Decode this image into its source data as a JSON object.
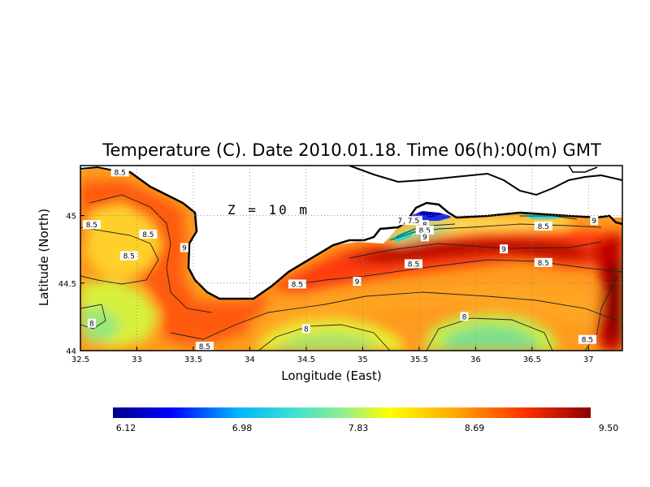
{
  "chart_data": {
    "type": "heatmap",
    "title": "Temperature (C). Date 2010.01.18. Time 06(h):00(m) GMT",
    "annotation": "Z = 10 m",
    "xlabel": "Longitude (East)",
    "ylabel": "Latitude (North)",
    "xlim": [
      32.5,
      37.3
    ],
    "ylim": [
      44.0,
      45.37
    ],
    "x_ticks": [
      "32.5",
      "33",
      "33.5",
      "34",
      "34.5",
      "35",
      "35.5",
      "36",
      "36.5",
      "37"
    ],
    "y_ticks": [
      "44",
      "44.5",
      "45"
    ],
    "grid": true,
    "colorbar": {
      "min": 6.12,
      "max": 9.5,
      "tick_labels": [
        "6.12",
        "6.98",
        "7.83",
        "8.69",
        "9.50"
      ],
      "colors": [
        "#00008b",
        "#0000ff",
        "#00b4ff",
        "#40e0d0",
        "#90ee90",
        "#ffff00",
        "#ffa500",
        "#ff3300",
        "#8b0000"
      ]
    },
    "contour_labels": [
      {
        "text": "8.5",
        "x": 32.85,
        "y": 45.32
      },
      {
        "text": "8.5",
        "x": 32.6,
        "y": 44.93
      },
      {
        "text": "8.5",
        "x": 33.1,
        "y": 44.86
      },
      {
        "text": "8.5",
        "x": 32.93,
        "y": 44.7
      },
      {
        "text": "9",
        "x": 33.42,
        "y": 44.76
      },
      {
        "text": "8.5",
        "x": 34.42,
        "y": 44.49
      },
      {
        "text": "9",
        "x": 34.95,
        "y": 44.51
      },
      {
        "text": "8.5",
        "x": 35.45,
        "y": 44.64
      },
      {
        "text": "7",
        "x": 35.33,
        "y": 44.96
      },
      {
        "text": "7.5",
        "x": 35.45,
        "y": 44.96
      },
      {
        "text": "8",
        "x": 35.55,
        "y": 44.93
      },
      {
        "text": "8.5",
        "x": 35.55,
        "y": 44.89
      },
      {
        "text": "9",
        "x": 35.55,
        "y": 44.84
      },
      {
        "text": "9",
        "x": 36.25,
        "y": 44.75
      },
      {
        "text": "8.5",
        "x": 36.6,
        "y": 44.92
      },
      {
        "text": "9",
        "x": 37.05,
        "y": 44.96
      },
      {
        "text": "8.5",
        "x": 36.6,
        "y": 44.65
      },
      {
        "text": "8",
        "x": 32.6,
        "y": 44.2
      },
      {
        "text": "8.5",
        "x": 33.6,
        "y": 44.03
      },
      {
        "text": "8",
        "x": 34.5,
        "y": 44.16
      },
      {
        "text": "8",
        "x": 35.9,
        "y": 44.25
      },
      {
        "text": "8.5",
        "x": 36.99,
        "y": 44.08
      }
    ]
  }
}
